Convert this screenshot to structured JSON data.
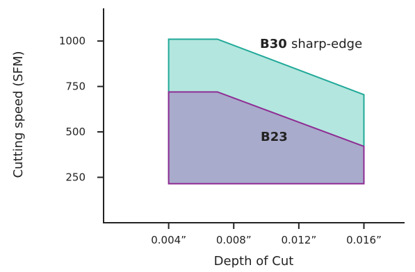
{
  "chart_data": {
    "type": "area",
    "xlabel": "Depth of Cut",
    "ylabel": "Cutting speed  (SFM)",
    "x_tick_labels": [
      "0.004”",
      "0.008”",
      "0.012”",
      "0.016”"
    ],
    "y_tick_labels": [
      "250",
      "500",
      "750",
      "1000"
    ],
    "y_ticks": [
      250,
      500,
      750,
      1000
    ],
    "x_ticks": [
      0.004,
      0.008,
      0.012,
      0.016
    ],
    "xlim": [
      0.0,
      0.0185
    ],
    "ylim": [
      0,
      1180
    ],
    "grid": false,
    "series": [
      {
        "name_bold": "B30",
        "name_rest": "sharp-edge",
        "fill": "#b3e6de",
        "stroke": "#20a898",
        "upper": [
          [
            0.004,
            1010
          ],
          [
            0.007,
            1010
          ],
          [
            0.016,
            705
          ]
        ],
        "lower": [
          [
            0.004,
            240
          ],
          [
            0.016,
            240
          ]
        ]
      },
      {
        "name_bold": "B23",
        "name_rest": "",
        "fill": "#a8abcb",
        "stroke": "#8e2b93",
        "upper": [
          [
            0.004,
            720
          ],
          [
            0.007,
            720
          ],
          [
            0.016,
            420
          ]
        ],
        "lower": [
          [
            0.004,
            215
          ],
          [
            0.016,
            215
          ]
        ]
      }
    ]
  }
}
